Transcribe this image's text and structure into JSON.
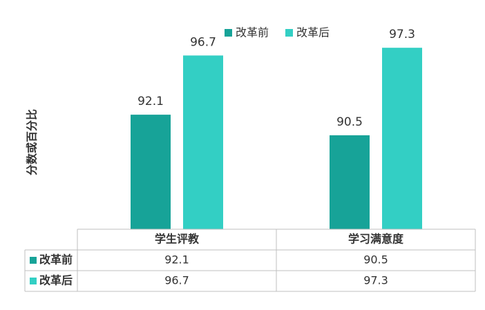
{
  "chart_data": {
    "type": "bar",
    "title": "",
    "xlabel": "",
    "ylabel": "分数或百分比",
    "categories": [
      "学生评教",
      "学习满意度"
    ],
    "series": [
      {
        "name": "改革前",
        "values": [
          92.1,
          90.5
        ],
        "color": "#17a398"
      },
      {
        "name": "改革后",
        "values": [
          96.7,
          97.3
        ],
        "color": "#33cfc4"
      }
    ],
    "ylim": [
      83.2,
      97.9
    ],
    "legend_position": "top-center",
    "grid": false,
    "data_table": true
  }
}
